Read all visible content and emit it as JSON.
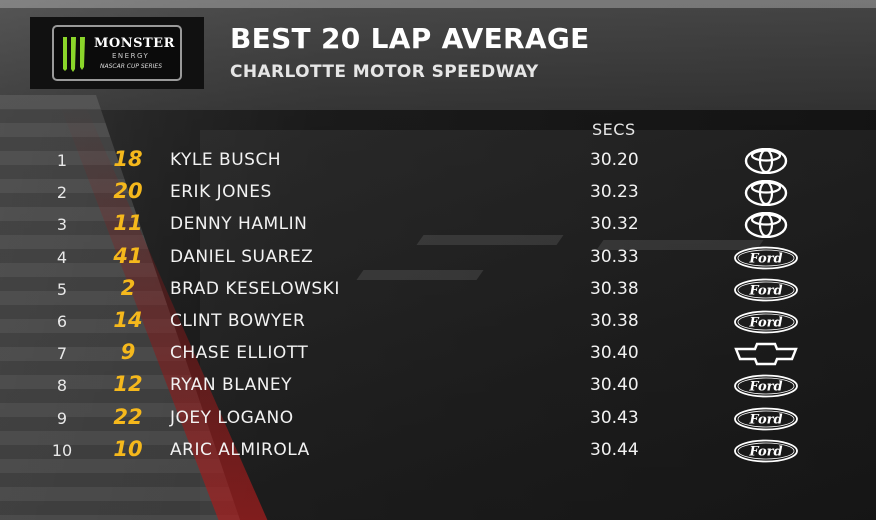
{
  "header": {
    "logo": {
      "line1": "MONSTER",
      "line2": "ENERGY",
      "line3": "NASCAR CUP SERIES",
      "icon": "monster-claw-icon"
    },
    "title": "BEST 20 LAP AVERAGE",
    "subtitle": "CHARLOTTE MOTOR SPEEDWAY"
  },
  "columns": {
    "time": "SECS"
  },
  "colors": {
    "car_number": "#f5b81c",
    "text": "#ffffff"
  },
  "rows": [
    {
      "pos": "1",
      "car": "18",
      "driver": "KYLE BUSCH",
      "secs": "30.20",
      "manufacturer": "toyota"
    },
    {
      "pos": "2",
      "car": "20",
      "driver": "ERIK JONES",
      "secs": "30.23",
      "manufacturer": "toyota"
    },
    {
      "pos": "3",
      "car": "11",
      "driver": "DENNY HAMLIN",
      "secs": "30.32",
      "manufacturer": "toyota"
    },
    {
      "pos": "4",
      "car": "41",
      "driver": "DANIEL SUAREZ",
      "secs": "30.33",
      "manufacturer": "ford"
    },
    {
      "pos": "5",
      "car": "2",
      "driver": "BRAD KESELOWSKI",
      "secs": "30.38",
      "manufacturer": "ford"
    },
    {
      "pos": "6",
      "car": "14",
      "driver": "CLINT BOWYER",
      "secs": "30.38",
      "manufacturer": "ford"
    },
    {
      "pos": "7",
      "car": "9",
      "driver": "CHASE ELLIOTT",
      "secs": "30.40",
      "manufacturer": "chevrolet"
    },
    {
      "pos": "8",
      "car": "12",
      "driver": "RYAN BLANEY",
      "secs": "30.40",
      "manufacturer": "ford"
    },
    {
      "pos": "9",
      "car": "22",
      "driver": "JOEY LOGANO",
      "secs": "30.43",
      "manufacturer": "ford"
    },
    {
      "pos": "10",
      "car": "10",
      "driver": "ARIC ALMIROLA",
      "secs": "30.44",
      "manufacturer": "ford"
    }
  ]
}
